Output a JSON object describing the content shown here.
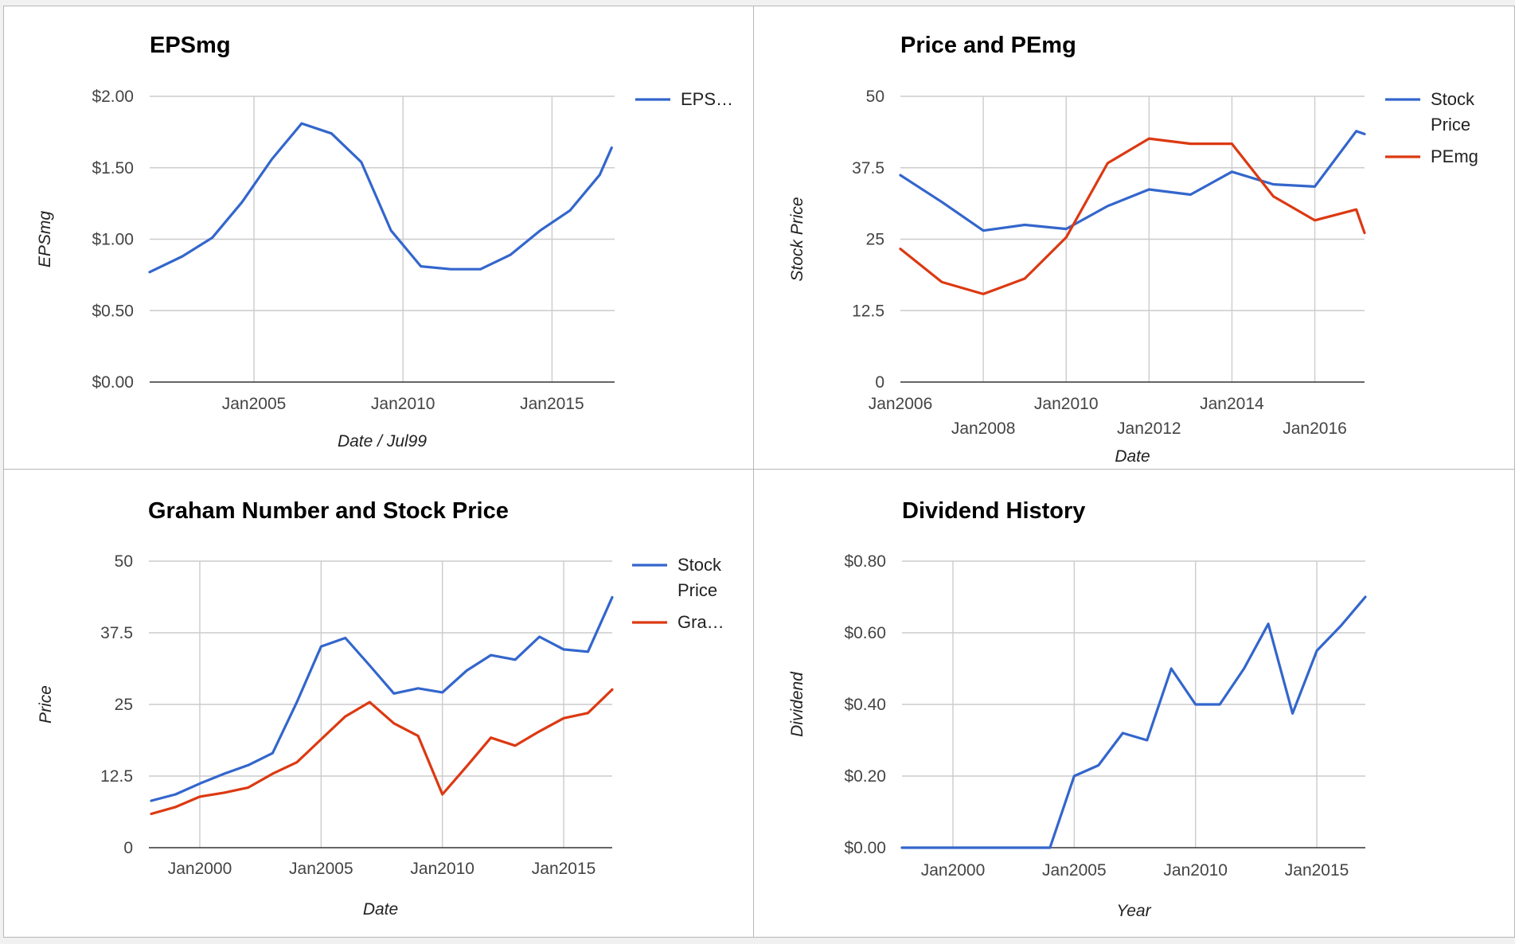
{
  "chart_data": [
    {
      "type": "line",
      "title": "EPSmg",
      "xlabel": "Date / Jul99",
      "ylabel": "EPSmg",
      "x_type": "year",
      "xlim": [
        2001.5,
        2017.1
      ],
      "ylim": [
        0,
        2
      ],
      "x_ticks": [
        {
          "v": 2005,
          "label": "Jan2005"
        },
        {
          "v": 2010,
          "label": "Jan2010"
        },
        {
          "v": 2015,
          "label": "Jan2015"
        }
      ],
      "y_ticks": [
        {
          "v": 0,
          "label": "$0.00"
        },
        {
          "v": 0.5,
          "label": "$0.50"
        },
        {
          "v": 1,
          "label": "$1.00"
        },
        {
          "v": 1.5,
          "label": "$1.50"
        },
        {
          "v": 2,
          "label": "$2.00"
        }
      ],
      "grid": true,
      "legend_position": "right",
      "series": [
        {
          "name": "EPS…",
          "color": "#3366cc",
          "x": [
            2001.5,
            2002.6,
            2003.6,
            2004.6,
            2005.6,
            2006.6,
            2007.6,
            2008.6,
            2009.6,
            2010.6,
            2011.6,
            2012.6,
            2013.6,
            2014.6,
            2015.6,
            2016.6,
            2017.0
          ],
          "y": [
            0.77,
            0.88,
            1.01,
            1.26,
            1.56,
            1.81,
            1.74,
            1.54,
            1.06,
            0.81,
            0.79,
            0.79,
            0.89,
            1.06,
            1.2,
            1.45,
            1.64
          ]
        }
      ]
    },
    {
      "type": "line",
      "title": "Price and PEmg",
      "xlabel": "Date",
      "ylabel": "Stock Price",
      "x_type": "year",
      "xlim": [
        2006.0,
        2017.2
      ],
      "ylim": [
        0,
        50
      ],
      "x_ticks": [
        {
          "v": 2006,
          "label": "Jan2006",
          "row": 0
        },
        {
          "v": 2008,
          "label": "Jan2008",
          "row": 1
        },
        {
          "v": 2010,
          "label": "Jan2010",
          "row": 0
        },
        {
          "v": 2012,
          "label": "Jan2012",
          "row": 1
        },
        {
          "v": 2014,
          "label": "Jan2014",
          "row": 0
        },
        {
          "v": 2016,
          "label": "Jan2016",
          "row": 1
        }
      ],
      "y_ticks": [
        {
          "v": 0,
          "label": "0"
        },
        {
          "v": 12.5,
          "label": "12.5"
        },
        {
          "v": 25,
          "label": "25"
        },
        {
          "v": 37.5,
          "label": "37.5"
        },
        {
          "v": 50,
          "label": "50"
        }
      ],
      "grid": true,
      "legend_position": "right",
      "series": [
        {
          "name": "Stock Price",
          "color": "#3366cc",
          "x": [
            2006.0,
            2007.0,
            2008.0,
            2009.0,
            2010.0,
            2011.0,
            2012.0,
            2013.0,
            2014.0,
            2015.0,
            2016.0,
            2017.0,
            2017.2
          ],
          "y": [
            36.2,
            31.5,
            26.5,
            27.5,
            26.8,
            30.8,
            33.7,
            32.8,
            36.8,
            34.6,
            34.2,
            43.9,
            43.4
          ]
        },
        {
          "name": "PEmg",
          "color": "#dc3912",
          "x": [
            2006.0,
            2007.0,
            2008.0,
            2009.0,
            2010.0,
            2011.0,
            2012.0,
            2013.0,
            2013.5,
            2014.0,
            2015.0,
            2016.0,
            2017.0,
            2017.2
          ],
          "y": [
            23.3,
            17.5,
            15.4,
            18.1,
            25.3,
            38.3,
            42.6,
            41.7,
            41.7,
            41.7,
            32.5,
            28.3,
            30.2,
            26.1
          ]
        }
      ]
    },
    {
      "type": "line",
      "title": "Graham Number and Stock Price",
      "xlabel": "Date",
      "ylabel": "Price",
      "x_type": "year",
      "xlim": [
        1997.9,
        2017.0
      ],
      "ylim": [
        0,
        50
      ],
      "x_ticks": [
        {
          "v": 2000,
          "label": "Jan2000"
        },
        {
          "v": 2005,
          "label": "Jan2005"
        },
        {
          "v": 2010,
          "label": "Jan2010"
        },
        {
          "v": 2015,
          "label": "Jan2015"
        }
      ],
      "y_ticks": [
        {
          "v": 0,
          "label": "0"
        },
        {
          "v": 12.5,
          "label": "12.5"
        },
        {
          "v": 25,
          "label": "25"
        },
        {
          "v": 37.5,
          "label": "37.5"
        },
        {
          "v": 50,
          "label": "50"
        }
      ],
      "grid": true,
      "legend_position": "right",
      "series": [
        {
          "name": "Stock Price",
          "color": "#3366cc",
          "x": [
            1998.0,
            1999.0,
            2000.0,
            2001.0,
            2002.0,
            2003.0,
            2004.0,
            2005.0,
            2006.0,
            2007.0,
            2008.0,
            2009.0,
            2010.0,
            2011.0,
            2012.0,
            2013.0,
            2014.0,
            2015.0,
            2016.0,
            2017.0
          ],
          "y": [
            8.2,
            9.3,
            11.2,
            12.9,
            14.4,
            16.5,
            25.4,
            35.1,
            36.6,
            31.8,
            26.9,
            27.8,
            27.1,
            30.9,
            33.6,
            32.8,
            36.8,
            34.6,
            34.2,
            43.7
          ]
        },
        {
          "name": "Gra…",
          "color": "#dc3912",
          "x": [
            1998.0,
            1999.0,
            2000.0,
            2001.0,
            2002.0,
            2003.0,
            2004.0,
            2005.0,
            2006.0,
            2007.0,
            2008.0,
            2009.0,
            2010.0,
            2011.0,
            2012.0,
            2013.0,
            2014.0,
            2015.0,
            2016.0,
            2017.0
          ],
          "y": [
            5.9,
            7.1,
            8.9,
            9.6,
            10.5,
            12.9,
            14.9,
            18.9,
            22.9,
            25.4,
            21.7,
            19.5,
            9.3,
            14.2,
            19.2,
            17.8,
            20.3,
            22.6,
            23.5,
            27.6
          ]
        }
      ]
    },
    {
      "type": "line",
      "title": "Dividend History",
      "xlabel": "Year",
      "ylabel": "Dividend",
      "x_type": "year",
      "xlim": [
        1997.9,
        2017.0
      ],
      "ylim": [
        0,
        0.8
      ],
      "x_ticks": [
        {
          "v": 2000,
          "label": "Jan2000"
        },
        {
          "v": 2005,
          "label": "Jan2005"
        },
        {
          "v": 2010,
          "label": "Jan2010"
        },
        {
          "v": 2015,
          "label": "Jan2015"
        }
      ],
      "y_ticks": [
        {
          "v": 0,
          "label": "$0.00"
        },
        {
          "v": 0.2,
          "label": "$0.20"
        },
        {
          "v": 0.4,
          "label": "$0.40"
        },
        {
          "v": 0.6,
          "label": "$0.60"
        },
        {
          "v": 0.8,
          "label": "$0.80"
        }
      ],
      "grid": true,
      "legend_position": "none",
      "series": [
        {
          "color": "#3366cc",
          "x": [
            1997.9,
            1999.0,
            2000.0,
            2001.0,
            2002.0,
            2003.0,
            2004.0,
            2005.0,
            2006.0,
            2007.0,
            2008.0,
            2009.0,
            2010.0,
            2011.0,
            2012.0,
            2013.0,
            2014.0,
            2015.0,
            2016.0,
            2017.0
          ],
          "y": [
            0,
            0,
            0,
            0,
            0,
            0,
            0,
            0.2,
            0.23,
            0.32,
            0.3,
            0.5,
            0.4,
            0.4,
            0.5,
            0.625,
            0.375,
            0.55,
            0.62,
            0.7
          ]
        }
      ]
    }
  ]
}
